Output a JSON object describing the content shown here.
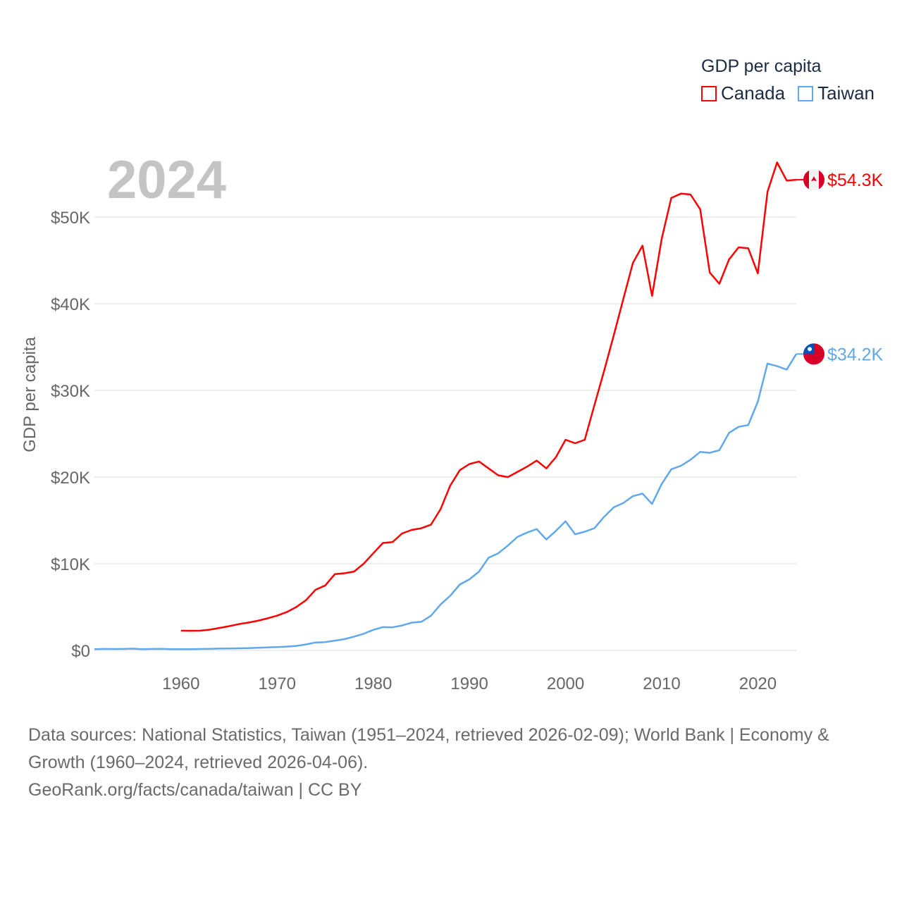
{
  "chart_data": {
    "type": "line",
    "title": "2024",
    "legend_title": "GDP per capita",
    "legend_placement": "top-right",
    "ylabel": "GDP per capita",
    "xlabel": "",
    "xlim": [
      1951,
      2024
    ],
    "ylim": [
      0,
      57000
    ],
    "x_ticks": [
      1960,
      1970,
      1980,
      1990,
      2000,
      2010,
      2020
    ],
    "y_ticks": [
      0,
      10000,
      20000,
      30000,
      40000,
      50000
    ],
    "y_tick_labels": [
      "$0",
      "$10K",
      "$20K",
      "$30K",
      "$40K",
      "$50K"
    ],
    "grid": true,
    "series": [
      {
        "name": "Canada",
        "color": "#ff0000",
        "start_year": 1960,
        "end_label": "$54.3K",
        "values": [
          2280,
          2270,
          2280,
          2400,
          2590,
          2800,
          3030,
          3210,
          3420,
          3700,
          4010,
          4420,
          5010,
          5800,
          7000,
          7500,
          8800,
          8900,
          9100,
          10000,
          11200,
          12400,
          12500,
          13500,
          13900,
          14100,
          14500,
          16300,
          19000,
          20800,
          21500,
          21800,
          21000,
          20200,
          20000,
          20600,
          21200,
          21900,
          21000,
          22300,
          24300,
          23900,
          24300,
          28300,
          32200,
          36300,
          40500,
          44700,
          46700,
          40900,
          47500,
          52200,
          52700,
          52600,
          50900,
          43600,
          42300,
          45100,
          46500,
          46400,
          43500,
          52900,
          56300,
          54200,
          54300
        ]
      },
      {
        "name": "Taiwan",
        "color": "#5fa8ec",
        "start_year": 1951,
        "end_label": "$34.2K",
        "values": [
          150,
          170,
          160,
          170,
          200,
          150,
          170,
          180,
          140,
          150,
          150,
          160,
          180,
          210,
          220,
          240,
          270,
          310,
          350,
          390,
          440,
          520,
          690,
          920,
          960,
          1130,
          1300,
          1590,
          1920,
          2370,
          2690,
          2670,
          2880,
          3200,
          3300,
          4000,
          5300,
          6300,
          7600,
          8200,
          9100,
          10700,
          11200,
          12100,
          13100,
          13600,
          14000,
          12800,
          13800,
          14900,
          13400,
          13700,
          14100,
          15400,
          16500,
          17000,
          17800,
          18100,
          16900,
          19200,
          20900,
          21300,
          22000,
          22900,
          22800,
          23100,
          25100,
          25800,
          26000,
          28700,
          33100,
          32800,
          32400,
          34200
        ]
      }
    ]
  },
  "footer": {
    "sources": "Data sources: National Statistics, Taiwan (1951–2024, retrieved 2026-02-09); World Bank | Economy & Growth (1960–2024, retrieved 2026-04-06).",
    "credit": "GeoRank.org/facts/canada/taiwan | CC BY"
  }
}
